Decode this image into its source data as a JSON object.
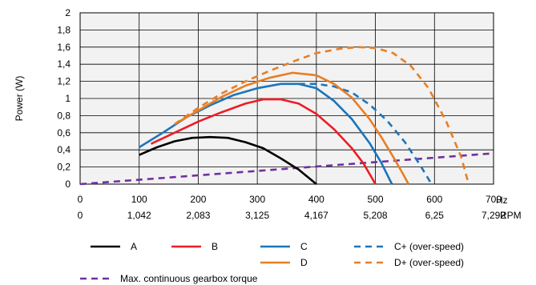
{
  "chart_data": {
    "type": "line",
    "title": "",
    "ylabel": "Power (W)",
    "x_unit_primary": "Hz",
    "x_unit_secondary": "RPM",
    "xlim": [
      0,
      700
    ],
    "ylim": [
      0,
      2
    ],
    "x_ticks": [
      "0",
      "100",
      "200",
      "300",
      "400",
      "500",
      "600",
      "700"
    ],
    "x_ticks_secondary": [
      "0",
      "1,042",
      "2,083",
      "3,125",
      "4,167",
      "5,208",
      "6,25",
      "7,292"
    ],
    "y_ticks": [
      "0",
      "0,2",
      "0,4",
      "0,6",
      "0,8",
      "1",
      "1,2",
      "1,4",
      "1,6",
      "1,8",
      "2"
    ],
    "grid": true,
    "legend_position": "bottom",
    "series": [
      {
        "name": "A",
        "color": "#000000",
        "style": "solid",
        "x": [
          100,
          130,
          160,
          190,
          220,
          250,
          280,
          310,
          340,
          370,
          400
        ],
        "y": [
          0.34,
          0.43,
          0.5,
          0.54,
          0.55,
          0.54,
          0.49,
          0.42,
          0.3,
          0.17,
          0.0
        ]
      },
      {
        "name": "B",
        "color": "#ee1c25",
        "style": "solid",
        "x": [
          120,
          160,
          200,
          240,
          280,
          310,
          340,
          370,
          400,
          430,
          460,
          480,
          500
        ],
        "y": [
          0.47,
          0.6,
          0.73,
          0.84,
          0.94,
          0.99,
          0.99,
          0.94,
          0.82,
          0.64,
          0.42,
          0.24,
          0.0
        ]
      },
      {
        "name": "C",
        "color": "#1b75bb",
        "style": "solid",
        "x": [
          100,
          140,
          180,
          220,
          260,
          300,
          340,
          370,
          400,
          430,
          460,
          490,
          510,
          528
        ],
        "y": [
          0.43,
          0.6,
          0.78,
          0.92,
          1.04,
          1.12,
          1.17,
          1.17,
          1.12,
          0.97,
          0.76,
          0.48,
          0.25,
          0.0
        ]
      },
      {
        "name": "C+ (over-speed)",
        "color": "#1b75bb",
        "style": "dashed",
        "x": [
          370,
          400,
          430,
          460,
          490,
          520,
          550,
          575,
          595
        ],
        "y": [
          1.17,
          1.17,
          1.14,
          1.07,
          0.93,
          0.74,
          0.49,
          0.23,
          0.0
        ]
      },
      {
        "name": "D",
        "color": "#e87e25",
        "style": "solid",
        "x": [
          160,
          200,
          240,
          280,
          320,
          360,
          400,
          430,
          460,
          490,
          510,
          530,
          545,
          556
        ],
        "y": [
          0.7,
          0.86,
          1.02,
          1.15,
          1.24,
          1.3,
          1.27,
          1.17,
          1.01,
          0.76,
          0.55,
          0.32,
          0.14,
          0.0
        ]
      },
      {
        "name": "D+ (over-speed)",
        "color": "#e87e25",
        "style": "dashed",
        "x": [
          160,
          200,
          240,
          280,
          320,
          360,
          400,
          440,
          470,
          500,
          530,
          560,
          590,
          620,
          645,
          658
        ],
        "y": [
          0.7,
          0.89,
          1.06,
          1.2,
          1.32,
          1.43,
          1.53,
          1.58,
          1.6,
          1.59,
          1.53,
          1.38,
          1.12,
          0.73,
          0.32,
          0.0
        ]
      },
      {
        "name": "Max. continuous gearbox torque",
        "color": "#7030a0",
        "style": "dashed",
        "x": [
          0,
          700
        ],
        "y": [
          0.0,
          0.36
        ]
      }
    ]
  }
}
